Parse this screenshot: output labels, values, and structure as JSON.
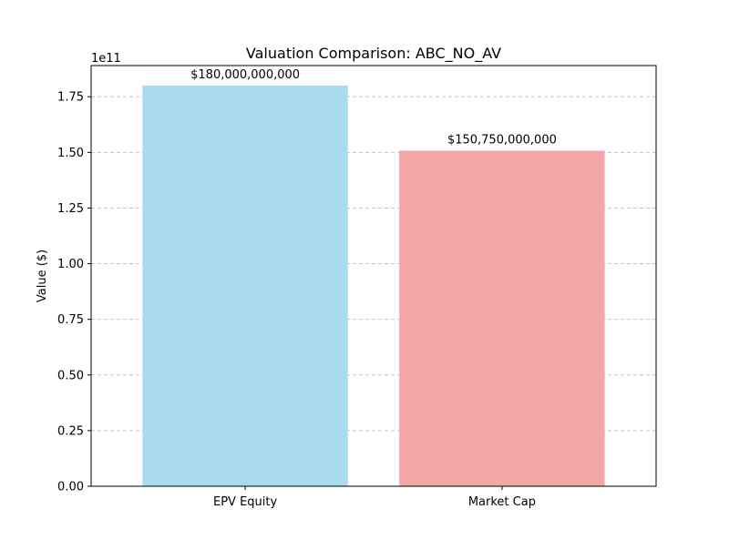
{
  "chart_data": {
    "type": "bar",
    "title": "Valuation Comparison: ABC_NO_AV",
    "xlabel": "",
    "ylabel": "Value ($)",
    "categories": [
      "EPV Equity",
      "Market Cap"
    ],
    "values": [
      180000000000,
      150750000000
    ],
    "value_labels": [
      "$180,000,000,000",
      "$150,750,000,000"
    ],
    "colors": [
      "#a8dbef",
      "#f3a6a7"
    ],
    "ylim": [
      0,
      189000000000
    ],
    "yticks": [
      0,
      25000000000,
      50000000000,
      75000000000,
      100000000000,
      125000000000,
      150000000000,
      175000000000
    ],
    "ytick_labels": [
      "0.00",
      "0.25",
      "0.50",
      "0.75",
      "1.00",
      "1.25",
      "1.50",
      "1.75"
    ],
    "y_offset_label": "1e11",
    "grid": {
      "y": true,
      "x": false,
      "style": "dashed",
      "color": "#c4c4c4"
    }
  }
}
